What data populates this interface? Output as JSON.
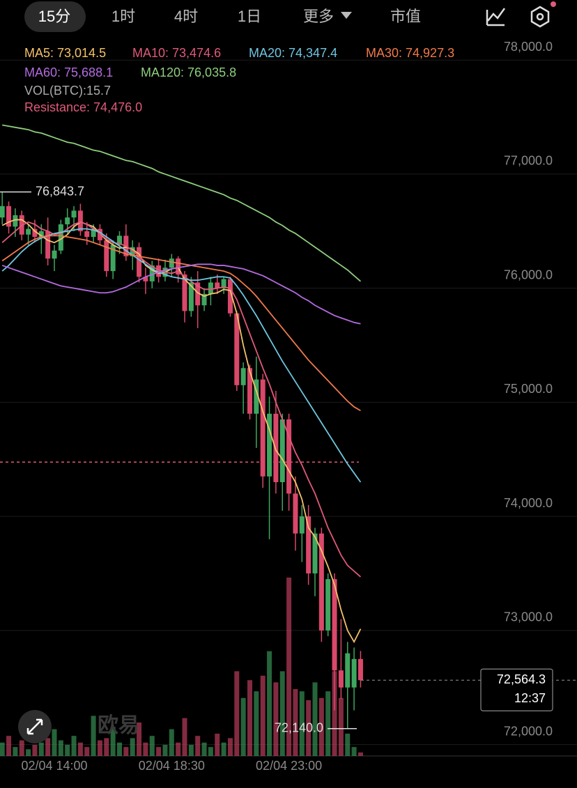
{
  "tabs": [
    "15分",
    "1时",
    "4时",
    "1日",
    "更多",
    "市值"
  ],
  "watermark": "欧易",
  "chart_data": {
    "type": "candlestick",
    "categories": [
      null,
      null,
      null,
      null,
      null,
      null,
      null,
      null,
      "02/04 14:00",
      null,
      null,
      null,
      null,
      null,
      null,
      null,
      null,
      null,
      null,
      null,
      null,
      null,
      null,
      null,
      null,
      null,
      "02/04 18:30",
      null,
      null,
      null,
      null,
      null,
      null,
      null,
      null,
      null,
      null,
      null,
      null,
      null,
      null,
      null,
      null,
      null,
      "02/04 23:00",
      null,
      null,
      null,
      null,
      null,
      null,
      null,
      null,
      null,
      null,
      null
    ],
    "candles": [
      [
        76620,
        76843.7,
        76560,
        76720
      ],
      [
        76720,
        76760,
        76480,
        76540
      ],
      [
        76540,
        76700,
        76450,
        76640
      ],
      [
        76640,
        76680,
        76420,
        76470
      ],
      [
        76470,
        76560,
        76380,
        76520
      ],
      [
        76520,
        76600,
        76400,
        76450
      ],
      [
        76450,
        76560,
        76300,
        76500
      ],
      [
        76500,
        76620,
        76200,
        76260
      ],
      [
        76260,
        76380,
        76150,
        76330
      ],
      [
        76330,
        76600,
        76300,
        76560
      ],
      [
        76560,
        76700,
        76480,
        76620
      ],
      [
        76620,
        76720,
        76500,
        76680
      ],
      [
        76680,
        76740,
        76460,
        76500
      ],
      [
        76500,
        76580,
        76380,
        76450
      ],
      [
        76450,
        76560,
        76400,
        76520
      ],
      [
        76520,
        76560,
        76380,
        76420
      ],
      [
        76420,
        76480,
        76100,
        76150
      ],
      [
        76150,
        76420,
        76080,
        76380
      ],
      [
        76380,
        76500,
        76300,
        76460
      ],
      [
        76460,
        76560,
        76240,
        76280
      ],
      [
        76280,
        76420,
        76160,
        76360
      ],
      [
        76360,
        76400,
        76050,
        76100
      ],
      [
        76100,
        76180,
        75950,
        76060
      ],
      [
        76060,
        76240,
        76000,
        76200
      ],
      [
        76200,
        76260,
        76050,
        76100
      ],
      [
        76100,
        76250,
        76060,
        76180
      ],
      [
        76180,
        76300,
        76100,
        76260
      ],
      [
        76260,
        76280,
        76050,
        76120
      ],
      [
        76120,
        76150,
        75700,
        75800
      ],
      [
        75800,
        76100,
        75750,
        76050
      ],
      [
        76050,
        76150,
        75650,
        75850
      ],
      [
        75850,
        76000,
        75800,
        75950
      ],
      [
        75950,
        76100,
        75850,
        76050
      ],
      [
        76050,
        76120,
        75950,
        76000
      ],
      [
        76000,
        76100,
        75950,
        76080
      ],
      [
        76080,
        76100,
        75750,
        75780
      ],
      [
        75780,
        75800,
        75100,
        75150
      ],
      [
        75150,
        75350,
        74900,
        75300
      ],
      [
        75300,
        75330,
        74850,
        74900
      ],
      [
        74900,
        75400,
        74600,
        75200
      ],
      [
        75200,
        75250,
        74250,
        74350
      ],
      [
        74350,
        75050,
        73800,
        74900
      ],
      [
        74900,
        75100,
        74200,
        74300
      ],
      [
        74300,
        74900,
        74050,
        74850
      ],
      [
        74850,
        74900,
        74050,
        74200
      ],
      [
        74200,
        74350,
        73700,
        73850
      ],
      [
        73850,
        74100,
        73600,
        74000
      ],
      [
        74000,
        74100,
        73400,
        73500
      ],
      [
        73500,
        73900,
        73300,
        73850
      ],
      [
        73850,
        73900,
        72900,
        73000
      ],
      [
        73000,
        73500,
        72950,
        73450
      ],
      [
        73450,
        73500,
        72300,
        72650
      ],
      [
        72650,
        73100,
        72400,
        72500
      ],
      [
        72500,
        72900,
        72140,
        72800
      ],
      [
        72500,
        72850,
        72300,
        72750
      ],
      [
        72750,
        72820,
        72500,
        72564.3
      ]
    ],
    "up_color": "#3fa660",
    "down_color": "#d9486a",
    "series": [
      {
        "name": "MA5: 73,014.5",
        "color": "#f5c26b",
        "values": [
          76550,
          76580,
          76600,
          76600,
          76560,
          76500,
          76460,
          76420,
          76400,
          76430,
          76470,
          76540,
          76580,
          76560,
          76540,
          76480,
          76420,
          76380,
          76350,
          76360,
          76340,
          76300,
          76200,
          76160,
          76130,
          76140,
          76170,
          76180,
          76080,
          76020,
          75960,
          75930,
          75950,
          75960,
          75990,
          75980,
          75780,
          75500,
          75270,
          75100,
          74920,
          74760,
          74580,
          74500,
          74400,
          74300,
          74150,
          73900,
          73820,
          73700,
          73560,
          73400,
          73180,
          73000,
          72900,
          73014
        ]
      },
      {
        "name": "MA10: 73,474.6",
        "color": "#e05a7a",
        "values": [
          76400,
          76450,
          76500,
          76550,
          76580,
          76560,
          76520,
          76500,
          76470,
          76480,
          76520,
          76560,
          76580,
          76560,
          76520,
          76480,
          76430,
          76400,
          76390,
          76370,
          76330,
          76280,
          76230,
          76190,
          76160,
          76140,
          76130,
          76150,
          76100,
          76060,
          76020,
          75990,
          75990,
          76000,
          76010,
          76000,
          75900,
          75750,
          75600,
          75450,
          75300,
          75160,
          75000,
          74850,
          74700,
          74560,
          74450,
          74320,
          74200,
          74050,
          73900,
          73780,
          73660,
          73570,
          73520,
          73470
        ]
      },
      {
        "name": "MA20: 74,347.4",
        "color": "#6ec6e0",
        "values": [
          76150,
          76200,
          76260,
          76320,
          76370,
          76410,
          76440,
          76460,
          76480,
          76490,
          76500,
          76510,
          76520,
          76520,
          76510,
          76490,
          76450,
          76410,
          76370,
          76330,
          76290,
          76250,
          76210,
          76170,
          76140,
          76120,
          76100,
          76090,
          76080,
          76070,
          76070,
          76080,
          76090,
          76100,
          76100,
          76090,
          76020,
          75940,
          75850,
          75760,
          75660,
          75560,
          75460,
          75360,
          75270,
          75180,
          75090,
          75000,
          74910,
          74820,
          74730,
          74640,
          74550,
          74460,
          74380,
          74300
        ]
      },
      {
        "name": "MA30: 74,927.3",
        "color": "#f07a4a",
        "values": [
          76240,
          76280,
          76320,
          76360,
          76400,
          76430,
          76450,
          76460,
          76460,
          76460,
          76450,
          76440,
          76430,
          76420,
          76400,
          76380,
          76360,
          76340,
          76320,
          76300,
          76290,
          76280,
          76270,
          76260,
          76250,
          76240,
          76230,
          76220,
          76210,
          76200,
          76190,
          76180,
          76170,
          76160,
          76150,
          76130,
          76090,
          76040,
          75990,
          75930,
          75860,
          75790,
          75720,
          75650,
          75580,
          75510,
          75440,
          75370,
          75310,
          75250,
          75190,
          75130,
          75070,
          75010,
          74960,
          74927
        ]
      },
      {
        "name": "MA60: 75,688.1",
        "color": "#b46be0",
        "values": [
          76200,
          76180,
          76160,
          76140,
          76120,
          76100,
          76080,
          76060,
          76040,
          76020,
          76010,
          76000,
          75990,
          75980,
          75970,
          75960,
          75960,
          75970,
          75990,
          76010,
          76040,
          76070,
          76100,
          76120,
          76140,
          76160,
          76170,
          76180,
          76190,
          76200,
          76210,
          76210,
          76210,
          76200,
          76200,
          76190,
          76180,
          76170,
          76150,
          76130,
          76110,
          76080,
          76050,
          76020,
          75990,
          75960,
          75920,
          75890,
          75850,
          75820,
          75790,
          75760,
          75740,
          75720,
          75700,
          75688
        ]
      },
      {
        "name": "MA120: 76,035.8",
        "color": "#8fce7e",
        "values": [
          77430,
          77420,
          77410,
          77400,
          77390,
          77370,
          77360,
          77340,
          77320,
          77300,
          77280,
          77270,
          77250,
          77230,
          77210,
          77200,
          77180,
          77160,
          77140,
          77120,
          77110,
          77090,
          77070,
          77050,
          77020,
          77000,
          76980,
          76960,
          76940,
          76920,
          76900,
          76880,
          76860,
          76840,
          76820,
          76790,
          76770,
          76740,
          76710,
          76680,
          76650,
          76620,
          76580,
          76550,
          76510,
          76480,
          76440,
          76400,
          76360,
          76320,
          76280,
          76240,
          76200,
          76160,
          76110,
          76060
        ]
      }
    ],
    "volume": {
      "name": "VOL(BTC):15.7",
      "values": [
        60,
        90,
        40,
        70,
        30,
        50,
        60,
        80,
        120,
        70,
        50,
        90,
        60,
        40,
        180,
        70,
        80,
        130,
        60,
        40,
        80,
        150,
        60,
        90,
        40,
        50,
        120,
        60,
        170,
        50,
        90,
        60,
        40,
        100,
        60,
        80,
        380,
        260,
        340,
        290,
        360,
        470,
        330,
        380,
        800,
        300,
        290,
        250,
        330,
        260,
        290,
        380,
        260,
        100,
        40,
        15.7
      ]
    },
    "resistance": {
      "name": "Resistance: 74,476.0",
      "value": 74476,
      "color": "#e05a7a"
    },
    "high": {
      "value": 76843.7,
      "label": "76,843.7"
    },
    "low": {
      "value": 72140,
      "label": "72,140.0"
    },
    "last_price": {
      "value": 72564.3,
      "label": "72,564.3"
    },
    "countdown": "12:37",
    "ylim": [
      71900,
      78160
    ],
    "yticks": [
      {
        "value": 72000,
        "label": "72,000.0"
      },
      {
        "value": 73000,
        "label": "73,000.0"
      },
      {
        "value": 74000,
        "label": "74,000.0"
      },
      {
        "value": 75000,
        "label": "75,000.0"
      },
      {
        "value": 76000,
        "label": "76,000.0"
      },
      {
        "value": 77000,
        "label": "77,000.0"
      },
      {
        "value": 78000,
        "label": "78,000.0"
      }
    ],
    "grid": true
  }
}
